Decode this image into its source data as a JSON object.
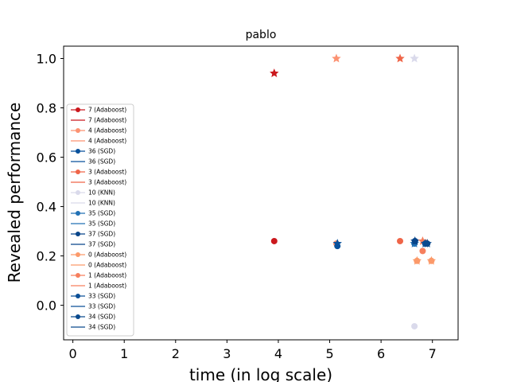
{
  "chart_data": {
    "type": "scatter",
    "title": "pablo",
    "xlabel": "time (in log scale)",
    "ylabel": "Revealed performance",
    "xlim": [
      -0.18,
      7.5
    ],
    "ylim": [
      -0.14,
      1.05
    ],
    "x_ticks": [
      0,
      1,
      2,
      3,
      4,
      5,
      6,
      7
    ],
    "y_ticks": [
      0.0,
      0.2,
      0.4,
      0.6,
      0.8,
      1.0
    ],
    "x_tick_labels": [
      "0",
      "1",
      "2",
      "3",
      "4",
      "5",
      "6",
      "7"
    ],
    "y_tick_labels": [
      "0.0",
      "0.2",
      "0.4",
      "0.6",
      "0.8",
      "1.0"
    ],
    "legend_position": "center-left",
    "grid": false,
    "legend": [
      {
        "label": "7 (Adaboost)",
        "kind": "marker",
        "color": "#cb181d"
      },
      {
        "label": "7 (Adaboost)",
        "kind": "line",
        "color": "#cb181d"
      },
      {
        "label": "4 (Adaboost)",
        "kind": "marker",
        "color": "#fc9272"
      },
      {
        "label": "4 (Adaboost)",
        "kind": "line",
        "color": "#fc9272"
      },
      {
        "label": "36 (SGD)",
        "kind": "marker",
        "color": "#08519c"
      },
      {
        "label": "36 (SGD)",
        "kind": "line",
        "color": "#08519c"
      },
      {
        "label": "3 (Adaboost)",
        "kind": "marker",
        "color": "#ef6548"
      },
      {
        "label": "3 (Adaboost)",
        "kind": "line",
        "color": "#ef6548"
      },
      {
        "label": "10 (KNN)",
        "kind": "marker",
        "color": "#dadaeb"
      },
      {
        "label": "10 (KNN)",
        "kind": "line",
        "color": "#dadaeb"
      },
      {
        "label": "35 (SGD)",
        "kind": "marker",
        "color": "#2171b5"
      },
      {
        "label": "35 (SGD)",
        "kind": "line",
        "color": "#2171b5"
      },
      {
        "label": "37 (SGD)",
        "kind": "marker",
        "color": "#08458a"
      },
      {
        "label": "37 (SGD)",
        "kind": "line",
        "color": "#08458a"
      },
      {
        "label": "0 (Adaboost)",
        "kind": "marker",
        "color": "#fc9a6a"
      },
      {
        "label": "0 (Adaboost)",
        "kind": "line",
        "color": "#fc9a6a"
      },
      {
        "label": "1 (Adaboost)",
        "kind": "marker",
        "color": "#f67f5d"
      },
      {
        "label": "1 (Adaboost)",
        "kind": "line",
        "color": "#f67f5d"
      },
      {
        "label": "33 (SGD)",
        "kind": "marker",
        "color": "#0b4f97"
      },
      {
        "label": "33 (SGD)",
        "kind": "line",
        "color": "#0b4f97"
      },
      {
        "label": "34 (SGD)",
        "kind": "marker",
        "color": "#0a4a8e"
      },
      {
        "label": "34 (SGD)",
        "kind": "line",
        "color": "#0a4a8e"
      }
    ],
    "series": [
      {
        "name": "7 (Adaboost)",
        "color": "#cb181d",
        "points": [
          {
            "x": 3.92,
            "y": 0.26,
            "marker": "circle"
          },
          {
            "x": 3.92,
            "y": 0.94,
            "marker": "star"
          }
        ]
      },
      {
        "name": "4 (Adaboost)",
        "color": "#fc9272",
        "points": [
          {
            "x": 5.13,
            "y": 0.25,
            "marker": "circle"
          },
          {
            "x": 5.13,
            "y": 1.0,
            "marker": "star"
          }
        ]
      },
      {
        "name": "36 (SGD)",
        "color": "#08519c",
        "points": [
          {
            "x": 5.15,
            "y": 0.24,
            "marker": "circle"
          },
          {
            "x": 5.15,
            "y": 0.25,
            "marker": "star"
          }
        ]
      },
      {
        "name": "3 (Adaboost)",
        "color": "#ef6548",
        "points": [
          {
            "x": 6.37,
            "y": 0.26,
            "marker": "circle"
          },
          {
            "x": 6.37,
            "y": 1.0,
            "marker": "star"
          }
        ]
      },
      {
        "name": "10 (KNN)",
        "color": "#dadaeb",
        "points": [
          {
            "x": 6.65,
            "y": -0.085,
            "marker": "circle"
          },
          {
            "x": 6.65,
            "y": 1.0,
            "marker": "star"
          }
        ]
      },
      {
        "name": "35 (SGD)",
        "color": "#2171b5",
        "points": [
          {
            "x": 6.65,
            "y": 0.25,
            "marker": "circle"
          },
          {
            "x": 6.65,
            "y": 0.25,
            "marker": "star"
          }
        ]
      },
      {
        "name": "37 (SGD)",
        "color": "#08458a",
        "points": [
          {
            "x": 6.66,
            "y": 0.26,
            "marker": "circle"
          },
          {
            "x": 6.66,
            "y": 0.26,
            "marker": "star"
          }
        ]
      },
      {
        "name": "0 (Adaboost)",
        "color": "#fc9a6a",
        "points": [
          {
            "x": 6.7,
            "y": 0.18,
            "marker": "circle"
          },
          {
            "x": 6.7,
            "y": 0.18,
            "marker": "star"
          }
        ]
      },
      {
        "name": "1 (Adaboost)",
        "color": "#f67f5d",
        "points": [
          {
            "x": 6.81,
            "y": 0.22,
            "marker": "circle"
          },
          {
            "x": 6.81,
            "y": 0.26,
            "marker": "star"
          }
        ]
      },
      {
        "name": "33 (SGD)",
        "color": "#0b4f97",
        "points": [
          {
            "x": 6.86,
            "y": 0.25,
            "marker": "circle"
          },
          {
            "x": 6.86,
            "y": 0.25,
            "marker": "star"
          }
        ]
      },
      {
        "name": "34 (SGD)",
        "color": "#0a4a8e",
        "points": [
          {
            "x": 6.9,
            "y": 0.25,
            "marker": "circle"
          },
          {
            "x": 6.9,
            "y": 0.25,
            "marker": "star"
          }
        ]
      },
      {
        "name": "0 (Adaboost)",
        "color": "#fc9a6a",
        "points": [
          {
            "x": 6.98,
            "y": 0.18,
            "marker": "circle"
          },
          {
            "x": 6.98,
            "y": 0.18,
            "marker": "star"
          }
        ]
      }
    ]
  }
}
